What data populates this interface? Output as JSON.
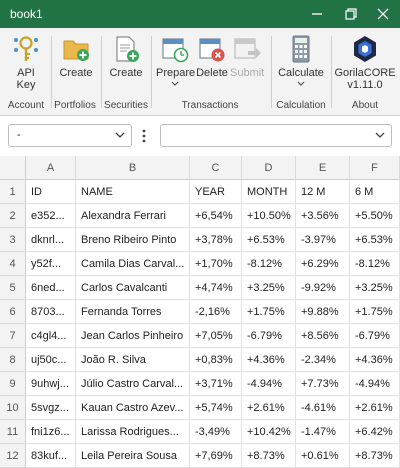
{
  "window": {
    "title": "book1"
  },
  "ribbon": {
    "groups": {
      "account": "Account",
      "portfolios": "Portfolios",
      "securities": "Securities",
      "transactions": "Transactions",
      "calculation": "Calculation",
      "about": "About"
    },
    "buttons": {
      "api_key_line1": "API",
      "api_key_line2": "Key",
      "portfolio_create": "Create",
      "security_create": "Create",
      "prepare": "Prepare",
      "delete": "Delete",
      "submit": "Submit",
      "calculate": "Calculate",
      "about_line1": "GorilaCORE",
      "about_line2": "v1.11.0"
    },
    "colors": {
      "accent": "#217346"
    }
  },
  "toolbar": {
    "left_select_value": "-",
    "right_select_value": ""
  },
  "sheet": {
    "columns": [
      "A",
      "B",
      "C",
      "D",
      "E",
      "F"
    ],
    "rows": [
      [
        "ID",
        "NAME",
        "YEAR",
        "MONTH",
        "12 M",
        "6 M"
      ],
      [
        "e352...",
        "Alexandra Ferrari",
        "+6,54%",
        "+10.50%",
        "+3.56%",
        "+5.50%"
      ],
      [
        "dknrl...",
        "Breno Ribeiro Pinto",
        "+3,78%",
        "+6.53%",
        "-3.97%",
        "+6.53%"
      ],
      [
        "y52f...",
        "Camila Dias Carval...",
        "+1,70%",
        "-8.12%",
        "+6.29%",
        "-8.12%"
      ],
      [
        "6ned...",
        "Carlos Cavalcanti",
        "+4,74%",
        "+3.25%",
        "-9.92%",
        "+3.25%"
      ],
      [
        "8703...",
        "Fernanda Torres",
        "-2,16%",
        "+1.75%",
        "+9.88%",
        "+1.75%"
      ],
      [
        "c4gl4...",
        "Jean Carlos Pinheiro",
        "+7,05%",
        "-6.79%",
        "+8.56%",
        "-6.79%"
      ],
      [
        "uj50c...",
        "João R. Silva",
        "+0,83%",
        "+4.36%",
        "-2.34%",
        "+4.36%"
      ],
      [
        "9uhwj...",
        "Júlio Castro Carval...",
        "+3,71%",
        "-4.94%",
        "+7.73%",
        "-4.94%"
      ],
      [
        "5svgz...",
        "Kauan Castro Azev...",
        "+5,74%",
        "+2.61%",
        "-4.61%",
        "+2.61%"
      ],
      [
        "fni1z6...",
        "Larissa Rodrigues...",
        "-3,49%",
        "+10.42%",
        "-1.47%",
        "+6.42%"
      ],
      [
        "83kuf...",
        "Leila Pereira Sousa",
        "+7,69%",
        "+8.73%",
        "+0.61%",
        "+8.73%"
      ]
    ]
  }
}
